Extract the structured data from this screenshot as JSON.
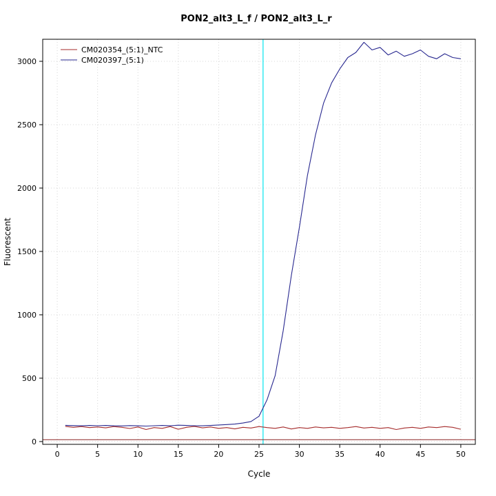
{
  "chart_data": {
    "type": "line",
    "title": "PON2_alt3_L_f / PON2_alt3_L_r",
    "xlabel": "Cycle",
    "ylabel": "Fluorescent",
    "xlim": [
      -1.8,
      51.8
    ],
    "ylim": [
      -22,
      3174
    ],
    "xticks": [
      0,
      5,
      10,
      15,
      20,
      25,
      30,
      35,
      40,
      45,
      50
    ],
    "yticks": [
      0,
      500,
      1000,
      1500,
      2000,
      2500,
      3000
    ],
    "grid": true,
    "legend_position": "top-left",
    "threshold_cycle": 25.5,
    "threshold_color": "#00e5ee",
    "baseline_value": 15,
    "baseline_color": "#8b2323",
    "x": [
      1,
      2,
      3,
      4,
      5,
      6,
      7,
      8,
      9,
      10,
      11,
      12,
      13,
      14,
      15,
      16,
      17,
      18,
      19,
      20,
      21,
      22,
      23,
      24,
      25,
      26,
      27,
      28,
      29,
      30,
      31,
      32,
      33,
      34,
      35,
      36,
      37,
      38,
      39,
      40,
      41,
      42,
      43,
      44,
      45,
      46,
      47,
      48,
      49,
      50
    ],
    "series": [
      {
        "name": "CM020354_(5:1)_NTC",
        "color": "#a52a2a",
        "values": [
          120,
          112,
          118,
          110,
          115,
          108,
          118,
          112,
          103,
          115,
          95,
          110,
          104,
          118,
          97,
          112,
          120,
          108,
          115,
          104,
          110,
          100,
          112,
          107,
          118,
          110,
          104,
          115,
          99,
          110,
          104,
          115,
          108,
          112,
          104,
          110,
          118,
          107,
          112,
          104,
          110,
          95,
          107,
          112,
          104,
          115,
          110,
          118,
          112,
          97
        ]
      },
      {
        "name": "CM020397_(5:1)",
        "color": "#27278f",
        "values": [
          128,
          126,
          124,
          127,
          125,
          127,
          124,
          123,
          126,
          124,
          122,
          125,
          127,
          124,
          129,
          127,
          125,
          124,
          127,
          131,
          134,
          138,
          146,
          158,
          200,
          330,
          520,
          875,
          1310,
          1690,
          2100,
          2420,
          2670,
          2830,
          2940,
          3030,
          3070,
          3150,
          3090,
          3110,
          3050,
          3080,
          3040,
          3060,
          3090,
          3040,
          3020,
          3060,
          3030,
          3020
        ]
      }
    ]
  }
}
